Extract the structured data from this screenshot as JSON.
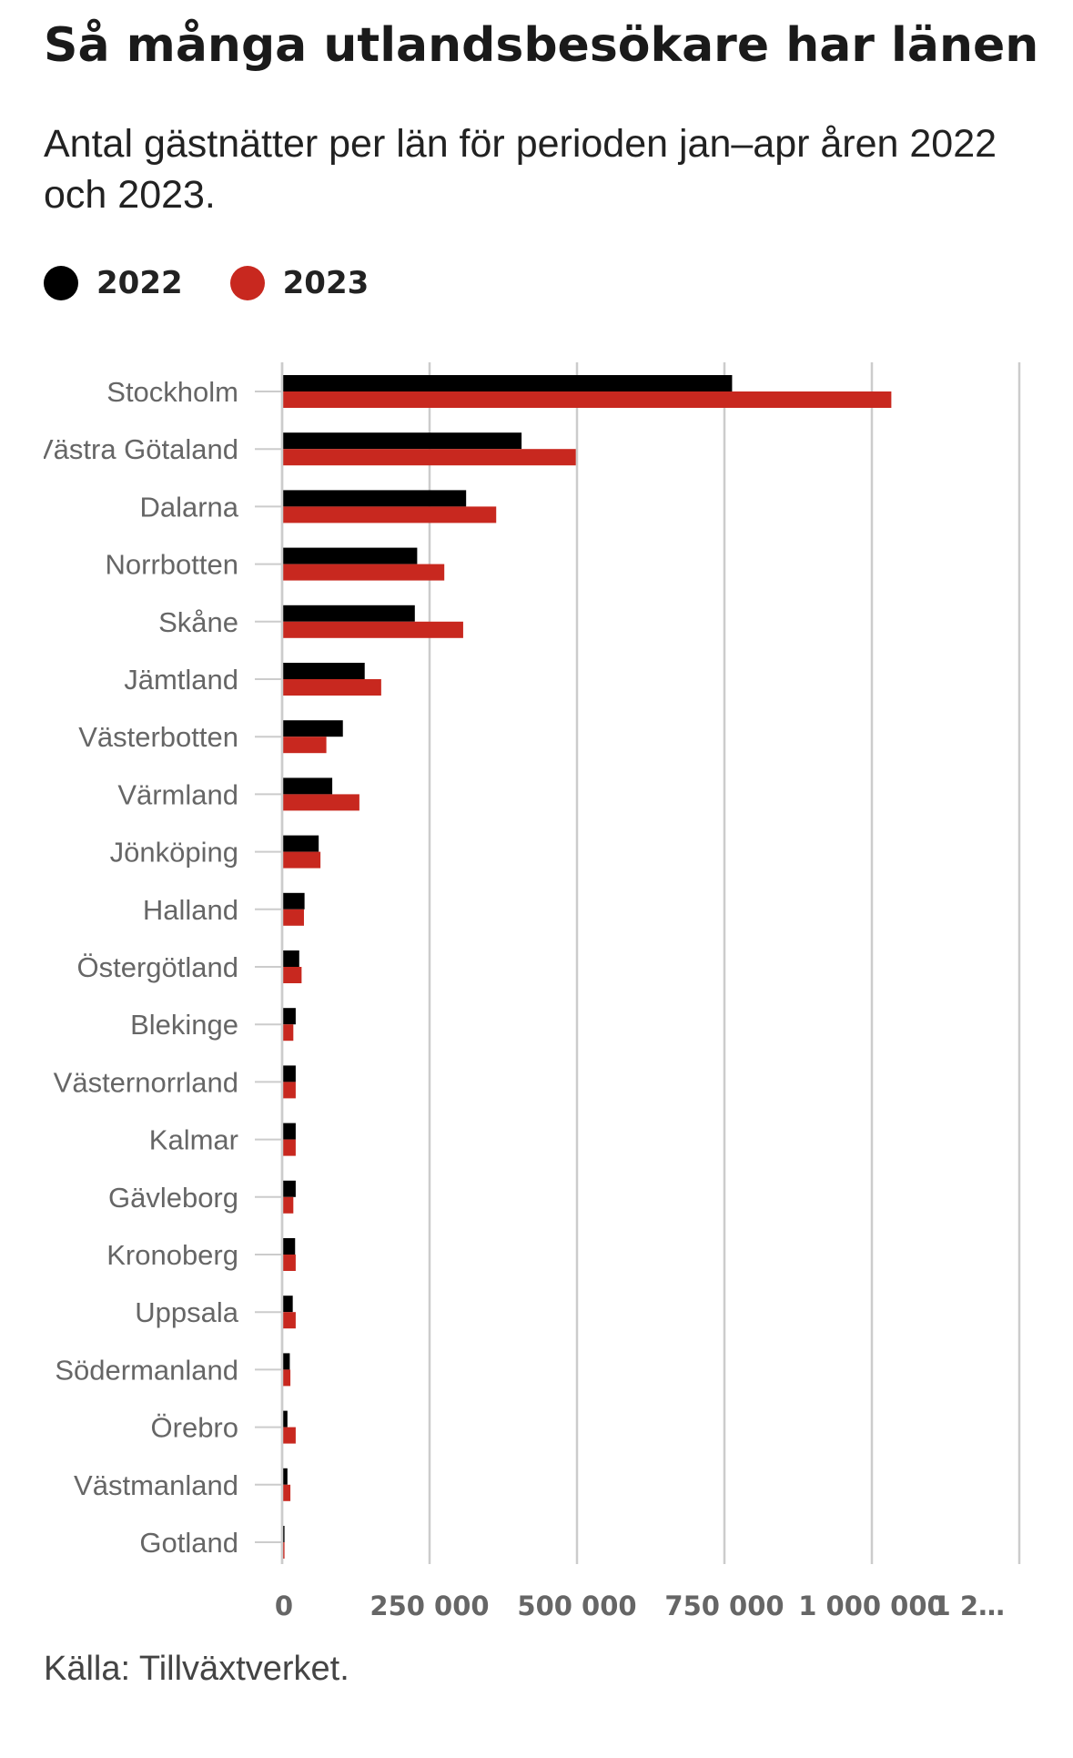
{
  "title": "Så många utlandsbesökare har länen",
  "subtitle": "Antal gästnätter per län för perioden jan–apr åren 2022 och 2023.",
  "source": "Källa: Tillväxtverket.",
  "colors": {
    "series_2022": "#000000",
    "series_2023": "#c8281f",
    "grid": "#cccccc",
    "tick_text": "#666666"
  },
  "chart_data": {
    "type": "bar",
    "orientation": "horizontal",
    "xlim": [
      0,
      1250000
    ],
    "x_ticks": [
      0,
      250000,
      500000,
      750000,
      1000000,
      1250000
    ],
    "x_tick_labels": [
      "0",
      "250 000",
      "500 000",
      "750 000",
      "1 000 000",
      "1 2…"
    ],
    "grid": true,
    "legend_position": "top-left",
    "categories": [
      "Stockholm",
      "Västra Götaland",
      "Dalarna",
      "Norrbotten",
      "Skåne",
      "Jämtland",
      "Västerbotten",
      "Värmland",
      "Jönköping",
      "Halland",
      "Östergötland",
      "Blekinge",
      "Västernorrland",
      "Kalmar",
      "Gävleborg",
      "Kronoberg",
      "Uppsala",
      "Södermanland",
      "Örebro",
      "Västmanland",
      "Gotland"
    ],
    "series": [
      {
        "name": "2022",
        "values": [
          763000,
          406000,
          312000,
          229000,
          225000,
          140000,
          103000,
          85000,
          62000,
          38000,
          29000,
          23000,
          23000,
          23000,
          23000,
          22000,
          18000,
          13000,
          9000,
          9000,
          4000
        ]
      },
      {
        "name": "2023",
        "values": [
          1033000,
          498000,
          363000,
          275000,
          307000,
          168000,
          75000,
          131000,
          65000,
          37000,
          33000,
          19000,
          23000,
          23000,
          19000,
          23000,
          23000,
          14000,
          23000,
          14000,
          4000
        ]
      }
    ]
  }
}
